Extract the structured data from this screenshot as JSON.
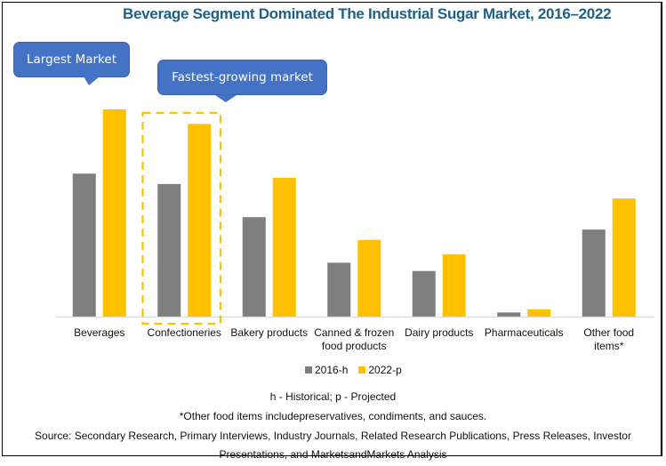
{
  "callouts": {
    "largest": "Largest Market",
    "fastest": "Fastest-growing market"
  },
  "colors": {
    "series_2016": "#7f7f7f",
    "series_2022": "#ffc000",
    "callout": "#4472c4",
    "title": "#1f5f86",
    "highlight_box": "#ffc000"
  },
  "notes": {
    "abbrev": "h - Historical; p - Projected",
    "footnote": "*Other food items includepreservatives, condiments, and sauces.",
    "source_line1": "Source: Secondary Research, Primary Interviews, Industry Journals, Related Research Publications, Press Releases, Investor",
    "source_line2": "Presentations, and MarketsandMarkets Analysis"
  },
  "chart_data": {
    "type": "bar",
    "title": "Beverage Segment Dominated The Industrial Sugar Market, 2016–2022",
    "xlabel": "",
    "ylabel": "",
    "y_axis_shown": false,
    "value_units": "relative index (tallest bar = 100; no axis shown)",
    "ylim": [
      0,
      100
    ],
    "grid": false,
    "legend_position": "bottom",
    "categories": [
      [
        "Beverages"
      ],
      [
        "Confectioneries"
      ],
      [
        "Bakery products"
      ],
      [
        "Canned & frozen",
        "food products"
      ],
      [
        "Dairy products"
      ],
      [
        "Pharmaceuticals"
      ],
      [
        "Other food",
        "items*"
      ]
    ],
    "series": [
      {
        "name": "2016-h",
        "values": [
          69,
          64,
          48,
          26,
          22,
          2,
          42
        ]
      },
      {
        "name": "2022-p",
        "values": [
          100,
          93,
          67,
          37,
          30,
          3.5,
          57
        ]
      }
    ],
    "highlighted_category_index": 1,
    "annotations": [
      "Largest Market",
      "Fastest-growing market"
    ]
  }
}
